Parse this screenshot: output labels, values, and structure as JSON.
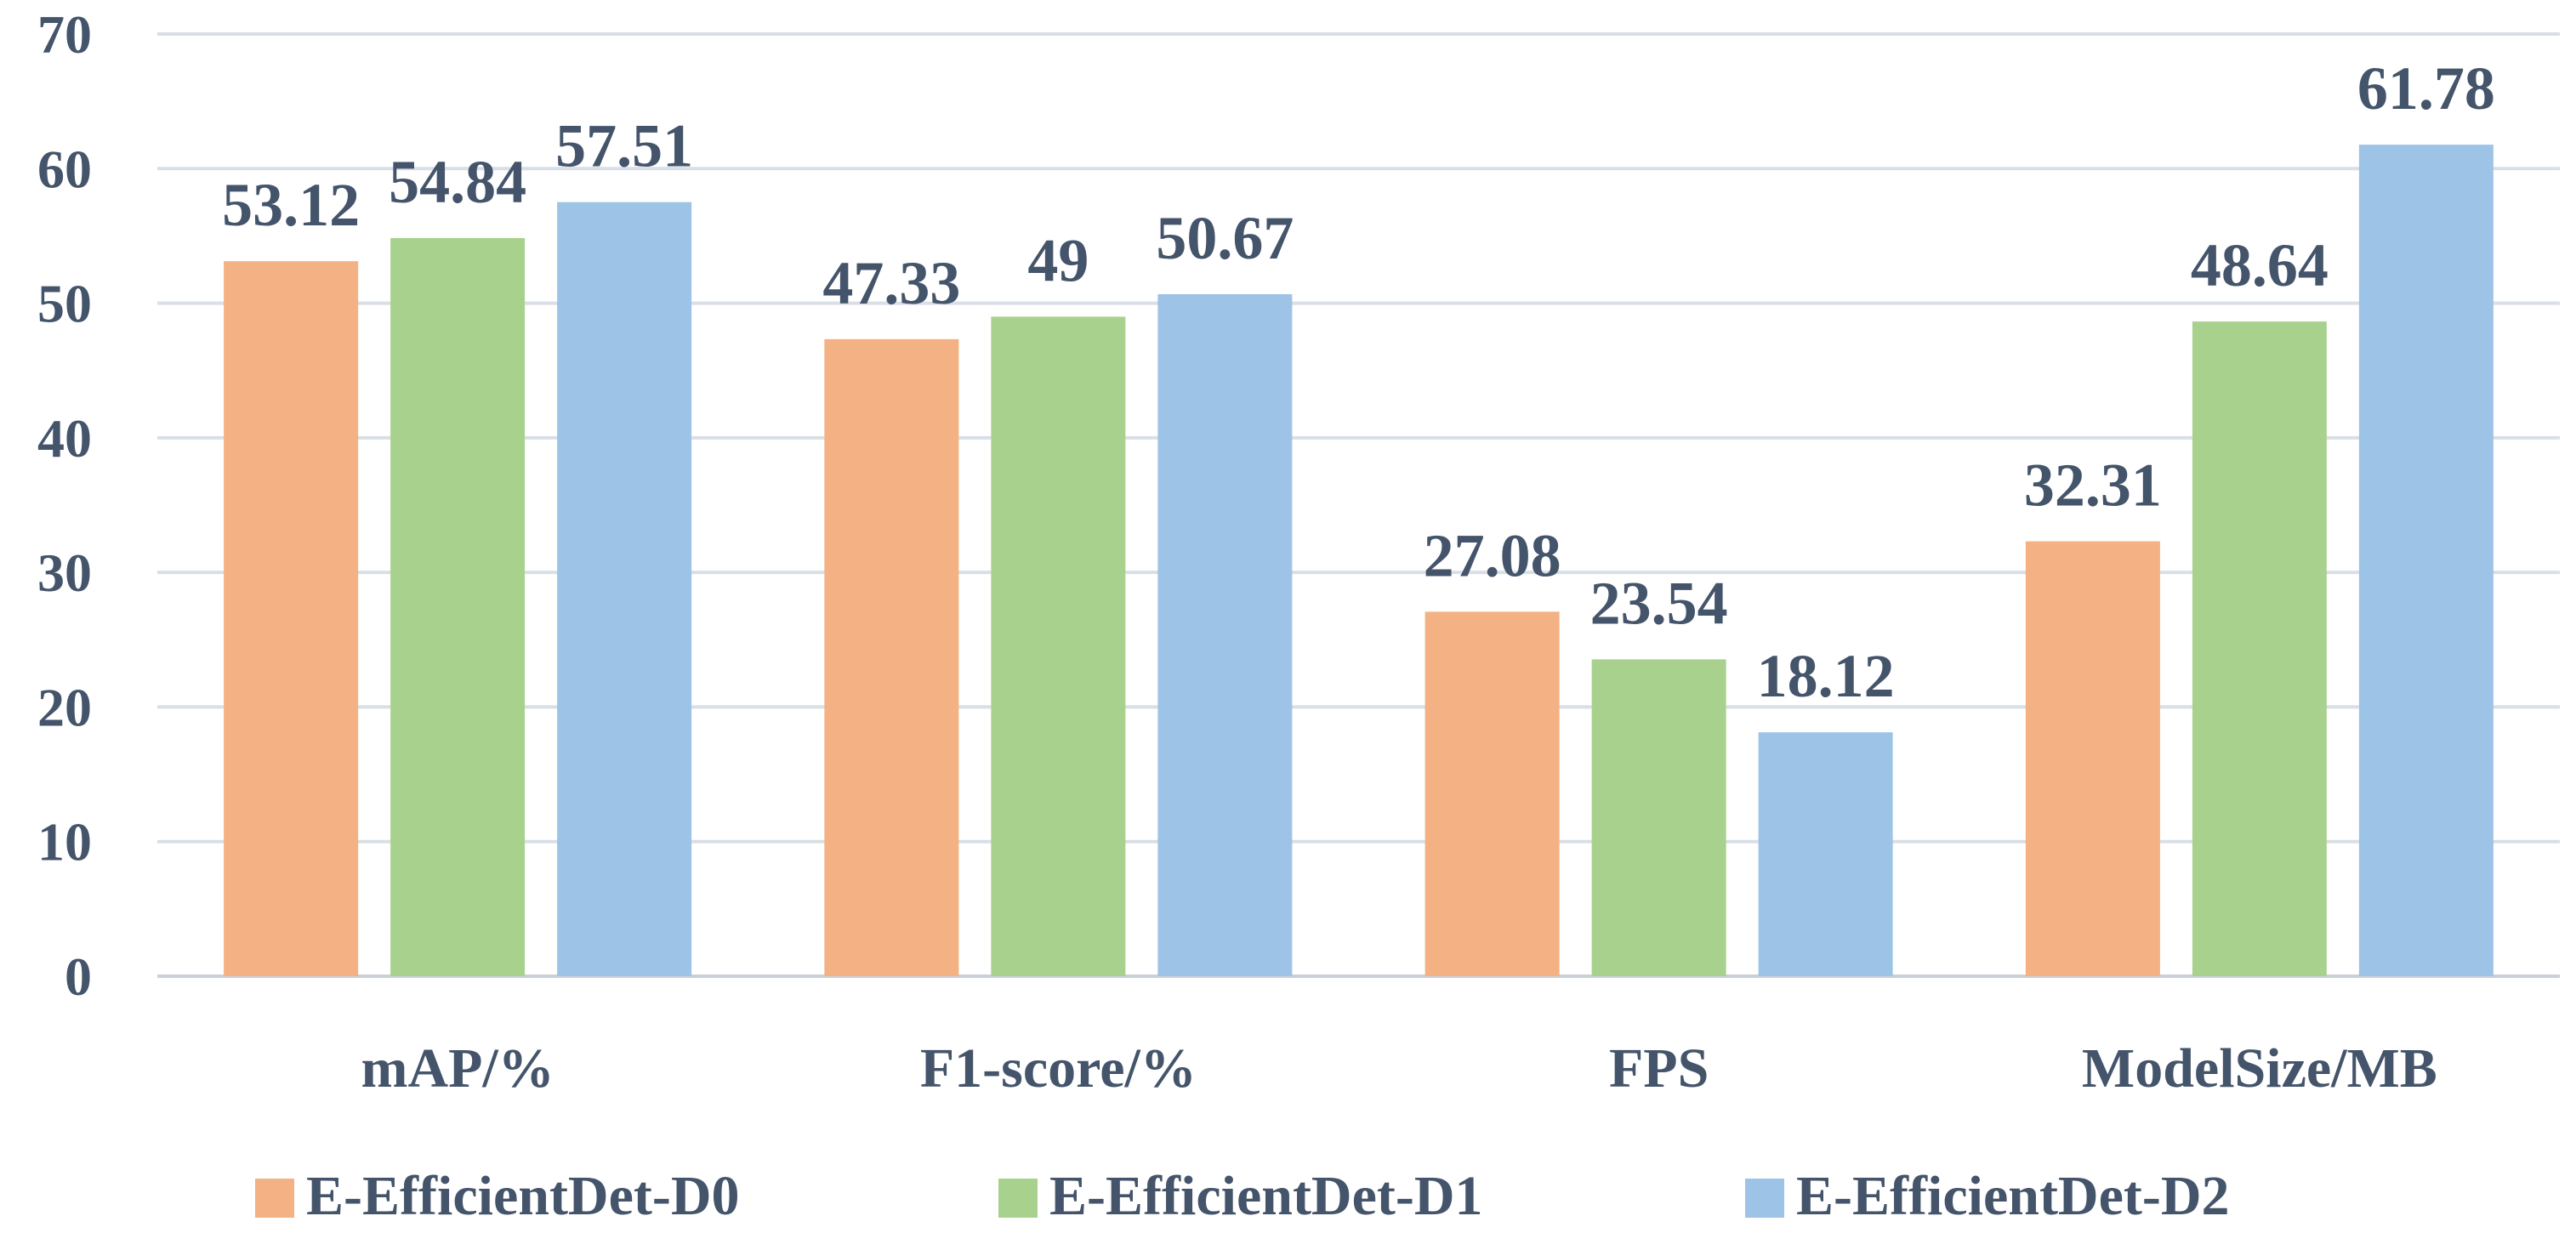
{
  "chart_data": {
    "type": "bar",
    "title": "",
    "xlabel": "",
    "ylabel": "",
    "ylim": [
      0,
      70
    ],
    "yticks": [
      0,
      10,
      20,
      30,
      40,
      50,
      60,
      70
    ],
    "grid": true,
    "legend_position": "bottom",
    "categories": [
      "mAP/%",
      "F1-score/%",
      "FPS",
      "ModelSize/MB"
    ],
    "series": [
      {
        "name": "E-EfficientDet-D0",
        "color": "#f4b183",
        "values": [
          53.12,
          47.33,
          27.08,
          32.31
        ],
        "labels": [
          "53.12",
          "47.33",
          "27.08",
          "32.31"
        ]
      },
      {
        "name": "E-EfficientDet-D1",
        "color": "#a9d18e",
        "values": [
          54.84,
          49,
          23.54,
          48.64
        ],
        "labels": [
          "54.84",
          "49",
          "23.54",
          "48.64"
        ]
      },
      {
        "name": "E-EfficientDet-D2",
        "color": "#9dc3e6",
        "values": [
          57.51,
          50.67,
          18.12,
          61.78
        ],
        "labels": [
          "57.51",
          "50.67",
          "18.12",
          "61.78"
        ]
      }
    ]
  }
}
